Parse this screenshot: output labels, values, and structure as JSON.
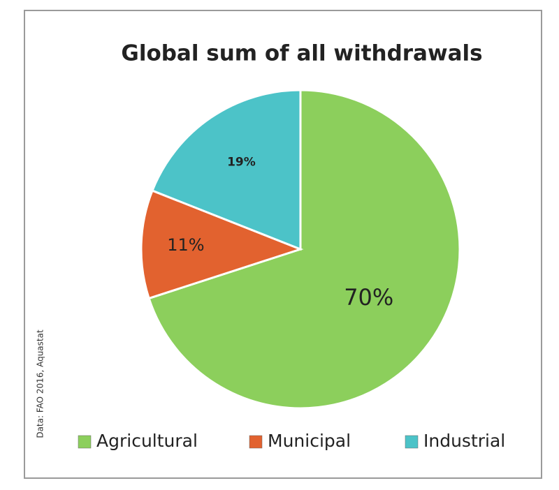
{
  "chart_data": {
    "type": "pie",
    "title": "Global sum of all withdrawals",
    "source": "Data: FAO 2016, Aquastat",
    "categories": [
      "Agricultural",
      "Municipal",
      "Industrial"
    ],
    "values": [
      70,
      11,
      19
    ],
    "value_labels": [
      "70%",
      "11%",
      "19%"
    ],
    "colors": [
      "#8ccf5c",
      "#e2622f",
      "#4cc3c8"
    ],
    "legend": "bottom"
  }
}
